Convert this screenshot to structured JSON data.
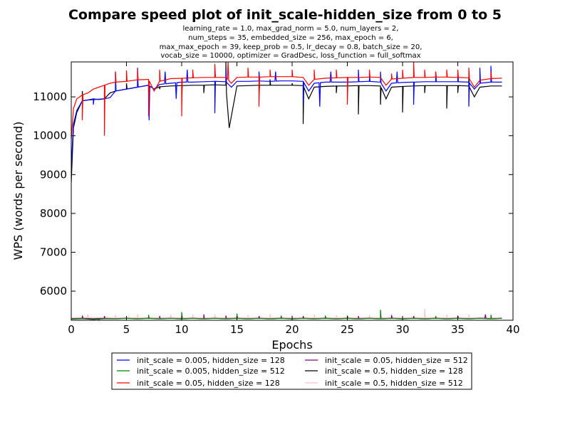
{
  "chart_data": {
    "type": "line",
    "title": "Compare speed plot of init_scale-hidden_size from 0 to 5",
    "subtitle_lines": [
      "learning_rate = 1.0, max_grad_norm = 5.0, num_layers = 2,",
      "num_steps = 35, embedded_size = 256, max_epoch = 6,",
      "max_max_epoch = 39, keep_prob = 0.5, lr_decay = 0.8, batch_size = 20,",
      "vocab_size = 10000, optimizer = GradDesc, loss_function = full_softmax"
    ],
    "xlabel": "Epochs",
    "ylabel": "WPS (words per second)",
    "xlim": [
      0,
      40
    ],
    "ylim": [
      5250,
      11900
    ],
    "x_ticks": [
      0,
      5,
      10,
      15,
      20,
      25,
      30,
      35,
      40
    ],
    "y_ticks": [
      6000,
      7000,
      8000,
      9000,
      10000,
      11000
    ],
    "grid": false,
    "legend_position": "below plot, two columns",
    "series": [
      {
        "name": "init_scale = 0.005, hidden_size = 128",
        "color": "#0000ff",
        "x": [
          0,
          0.2,
          0.5,
          1,
          1.5,
          2,
          2.5,
          3,
          3.5,
          4,
          5,
          6,
          7,
          7.5,
          8,
          9,
          10,
          11,
          12,
          13,
          14,
          14.5,
          15,
          16,
          17,
          18,
          19,
          20,
          21,
          21.5,
          22,
          23,
          24,
          25,
          26,
          27,
          28,
          28.5,
          29,
          30,
          31,
          32,
          33,
          34,
          35,
          36,
          36.5,
          37,
          38,
          39
        ],
        "y": [
          9200,
          10300,
          10650,
          10900,
          10920,
          10950,
          10930,
          10950,
          10980,
          11150,
          11200,
          11250,
          11300,
          11200,
          11320,
          11350,
          11380,
          11380,
          11390,
          11400,
          11390,
          11250,
          11400,
          11400,
          11410,
          11400,
          11410,
          11410,
          11400,
          11150,
          11350,
          11380,
          11380,
          11380,
          11390,
          11400,
          11380,
          11150,
          11350,
          11370,
          11380,
          11390,
          11390,
          11390,
          11390,
          11380,
          11200,
          11350,
          11380,
          11380
        ],
        "spikes": [
          [
            2,
            10800
          ],
          [
            4,
            11650
          ],
          [
            6,
            11750
          ],
          [
            7.05,
            10400
          ],
          [
            8.5,
            11650
          ],
          [
            9.5,
            10950
          ],
          [
            10.5,
            11700
          ],
          [
            13,
            10580
          ],
          [
            14,
            11700
          ],
          [
            17,
            11650
          ],
          [
            18.5,
            11650
          ],
          [
            21,
            10850
          ],
          [
            22.5,
            10750
          ],
          [
            23.5,
            11650
          ],
          [
            26,
            11700
          ],
          [
            27,
            11600
          ],
          [
            28,
            11650
          ],
          [
            29.5,
            11650
          ],
          [
            31,
            10800
          ],
          [
            33,
            11650
          ],
          [
            35,
            11650
          ],
          [
            36,
            10750
          ],
          [
            37,
            11750
          ],
          [
            38,
            11800
          ]
        ]
      },
      {
        "name": "init_scale = 0.005, hidden_size = 512",
        "color": "#008000",
        "x": [
          0,
          1,
          2,
          3,
          4,
          5,
          6,
          7,
          8,
          9,
          10,
          11,
          12,
          13,
          14,
          15,
          16,
          17,
          18,
          19,
          20,
          21,
          22,
          23,
          24,
          25,
          26,
          27,
          28,
          29,
          30,
          31,
          32,
          33,
          34,
          35,
          36,
          37,
          38,
          39
        ],
        "y": [
          5280,
          5290,
          5270,
          5290,
          5290,
          5300,
          5290,
          5300,
          5290,
          5300,
          5290,
          5300,
          5290,
          5300,
          5290,
          5300,
          5290,
          5300,
          5290,
          5300,
          5290,
          5300,
          5290,
          5300,
          5290,
          5300,
          5290,
          5300,
          5290,
          5300,
          5290,
          5300,
          5290,
          5300,
          5290,
          5300,
          5290,
          5300,
          5290,
          5300
        ],
        "spikes": [
          [
            2.5,
            5250
          ],
          [
            7,
            5390
          ],
          [
            10,
            5460
          ],
          [
            15,
            5420
          ],
          [
            19,
            5370
          ],
          [
            23,
            5370
          ],
          [
            25,
            5370
          ],
          [
            28,
            5520
          ],
          [
            33,
            5360
          ],
          [
            38,
            5390
          ]
        ]
      },
      {
        "name": "init_scale = 0.05, hidden_size = 128",
        "color": "#ff0000",
        "x": [
          0,
          0.2,
          0.5,
          1,
          1.5,
          2,
          2.5,
          3,
          3.5,
          4,
          5,
          6,
          7,
          7.5,
          8,
          9,
          10,
          11,
          12,
          13,
          14,
          14.5,
          15,
          16,
          17,
          18,
          19,
          20,
          21,
          21.5,
          22,
          23,
          24,
          25,
          26,
          27,
          28,
          28.5,
          29,
          30,
          31,
          32,
          33,
          34,
          35,
          36,
          36.5,
          37,
          38,
          39
        ],
        "y": [
          9900,
          10700,
          10950,
          11050,
          11100,
          11200,
          11250,
          11300,
          11350,
          11380,
          11400,
          11440,
          11450,
          11150,
          11400,
          11470,
          11480,
          11490,
          11500,
          11500,
          11500,
          11350,
          11500,
          11510,
          11510,
          11520,
          11520,
          11520,
          11500,
          11300,
          11450,
          11480,
          11490,
          11500,
          11500,
          11510,
          11500,
          11300,
          11460,
          11480,
          11500,
          11500,
          11510,
          11510,
          11500,
          11490,
          11250,
          11430,
          11470,
          11480
        ],
        "spikes": [
          [
            1,
            10400
          ],
          [
            2,
            11200
          ],
          [
            3,
            10000
          ],
          [
            4,
            11650
          ],
          [
            5,
            11680
          ],
          [
            6,
            11700
          ],
          [
            7,
            10500
          ],
          [
            8,
            11700
          ],
          [
            10,
            10500
          ],
          [
            11,
            11700
          ],
          [
            13,
            11850
          ],
          [
            14.2,
            11900
          ],
          [
            16,
            11750
          ],
          [
            17,
            10750
          ],
          [
            18,
            11700
          ],
          [
            20,
            11700
          ],
          [
            22,
            11700
          ],
          [
            24,
            11700
          ],
          [
            25,
            10800
          ],
          [
            27,
            11700
          ],
          [
            29,
            11600
          ],
          [
            30,
            11700
          ],
          [
            31,
            11900
          ],
          [
            32,
            11700
          ],
          [
            33,
            11650
          ],
          [
            34,
            11700
          ],
          [
            35,
            11700
          ],
          [
            36,
            11750
          ],
          [
            38,
            11650
          ]
        ]
      },
      {
        "name": "init_scale = 0.05, hidden_size = 512",
        "color": "#800080",
        "x": [
          0,
          1,
          2,
          3,
          4,
          5,
          6,
          7,
          8,
          9,
          10,
          11,
          12,
          13,
          14,
          15,
          16,
          17,
          18,
          19,
          20,
          21,
          22,
          23,
          24,
          25,
          26,
          27,
          28,
          29,
          30,
          31,
          32,
          33,
          34,
          35,
          36,
          37,
          38,
          39
        ],
        "y": [
          5290,
          5300,
          5290,
          5300,
          5290,
          5300,
          5290,
          5300,
          5290,
          5300,
          5290,
          5300,
          5290,
          5300,
          5290,
          5300,
          5290,
          5300,
          5290,
          5300,
          5290,
          5300,
          5290,
          5300,
          5290,
          5300,
          5290,
          5300,
          5290,
          5300,
          5290,
          5300,
          5290,
          5300,
          5290,
          5300,
          5290,
          5300,
          5290,
          5300
        ],
        "spikes": [
          [
            1,
            5370
          ],
          [
            3,
            5360
          ],
          [
            8,
            5360
          ],
          [
            12,
            5400
          ],
          [
            14,
            5370
          ],
          [
            17,
            5360
          ],
          [
            21,
            5360
          ],
          [
            26,
            5360
          ],
          [
            29,
            5380
          ],
          [
            31,
            5360
          ],
          [
            35,
            5370
          ],
          [
            37.5,
            5400
          ]
        ]
      },
      {
        "name": "init_scale = 0.5, hidden_size = 128",
        "color": "#000000",
        "x": [
          0,
          0.2,
          0.5,
          1,
          1.5,
          2,
          2.5,
          3,
          3.5,
          4,
          5,
          6,
          7,
          7.5,
          8,
          9,
          10,
          11,
          12,
          13,
          14,
          14.3,
          15,
          16,
          17,
          18,
          19,
          20,
          21,
          21.5,
          22,
          23,
          24,
          25,
          26,
          27,
          28,
          28.5,
          29,
          30,
          31,
          32,
          33,
          34,
          35,
          36,
          36.5,
          37,
          38,
          39
        ],
        "y": [
          8800,
          10200,
          10600,
          10900,
          10920,
          10930,
          10940,
          10950,
          11100,
          11150,
          11200,
          11250,
          11300,
          11200,
          11260,
          11280,
          11290,
          11300,
          11300,
          11310,
          11300,
          10200,
          11280,
          11290,
          11300,
          11300,
          11300,
          11300,
          11290,
          10950,
          11250,
          11270,
          11280,
          11280,
          11290,
          11290,
          11280,
          10950,
          11250,
          11270,
          11280,
          11290,
          11290,
          11290,
          11290,
          11280,
          11000,
          11250,
          11280,
          11280
        ],
        "spikes": [
          [
            1,
            11150
          ],
          [
            3,
            11100
          ],
          [
            5,
            11350
          ],
          [
            6,
            11450
          ],
          [
            7,
            11100
          ],
          [
            8,
            11200
          ],
          [
            10,
            11050
          ],
          [
            12,
            11100
          ],
          [
            14,
            11900
          ],
          [
            17,
            11100
          ],
          [
            18,
            11450
          ],
          [
            20,
            11350
          ],
          [
            21,
            10300
          ],
          [
            24,
            11100
          ],
          [
            26,
            10550
          ],
          [
            28,
            10800
          ],
          [
            30,
            10600
          ],
          [
            32,
            11100
          ],
          [
            34,
            10700
          ],
          [
            35,
            11100
          ],
          [
            36,
            11500
          ]
        ]
      },
      {
        "name": "init_scale = 0.5, hidden_size = 512",
        "color": "#ffc0cb",
        "x": [
          0,
          1,
          2,
          3,
          4,
          5,
          6,
          7,
          8,
          9,
          10,
          11,
          12,
          13,
          14,
          15,
          16,
          17,
          18,
          19,
          20,
          21,
          22,
          23,
          24,
          25,
          26,
          27,
          28,
          29,
          30,
          31,
          32,
          33,
          34,
          35,
          36,
          37,
          38,
          39
        ],
        "y": [
          5310,
          5320,
          5310,
          5320,
          5310,
          5320,
          5310,
          5320,
          5310,
          5320,
          5310,
          5320,
          5310,
          5320,
          5310,
          5320,
          5310,
          5320,
          5310,
          5320,
          5310,
          5320,
          5310,
          5320,
          5310,
          5320,
          5310,
          5320,
          5310,
          5320,
          5310,
          5320,
          5310,
          5320,
          5310,
          5320,
          5310,
          5320,
          5310,
          5320
        ],
        "spikes": [
          [
            1.5,
            5400
          ],
          [
            4,
            5390
          ],
          [
            6,
            5410
          ],
          [
            9,
            5390
          ],
          [
            11,
            5400
          ],
          [
            13,
            5400
          ],
          [
            16,
            5380
          ],
          [
            18,
            5410
          ],
          [
            20,
            5380
          ],
          [
            22,
            5400
          ],
          [
            24,
            5380
          ],
          [
            27,
            5380
          ],
          [
            29,
            5410
          ],
          [
            32,
            5540
          ],
          [
            34,
            5390
          ],
          [
            36,
            5400
          ]
        ]
      }
    ]
  }
}
